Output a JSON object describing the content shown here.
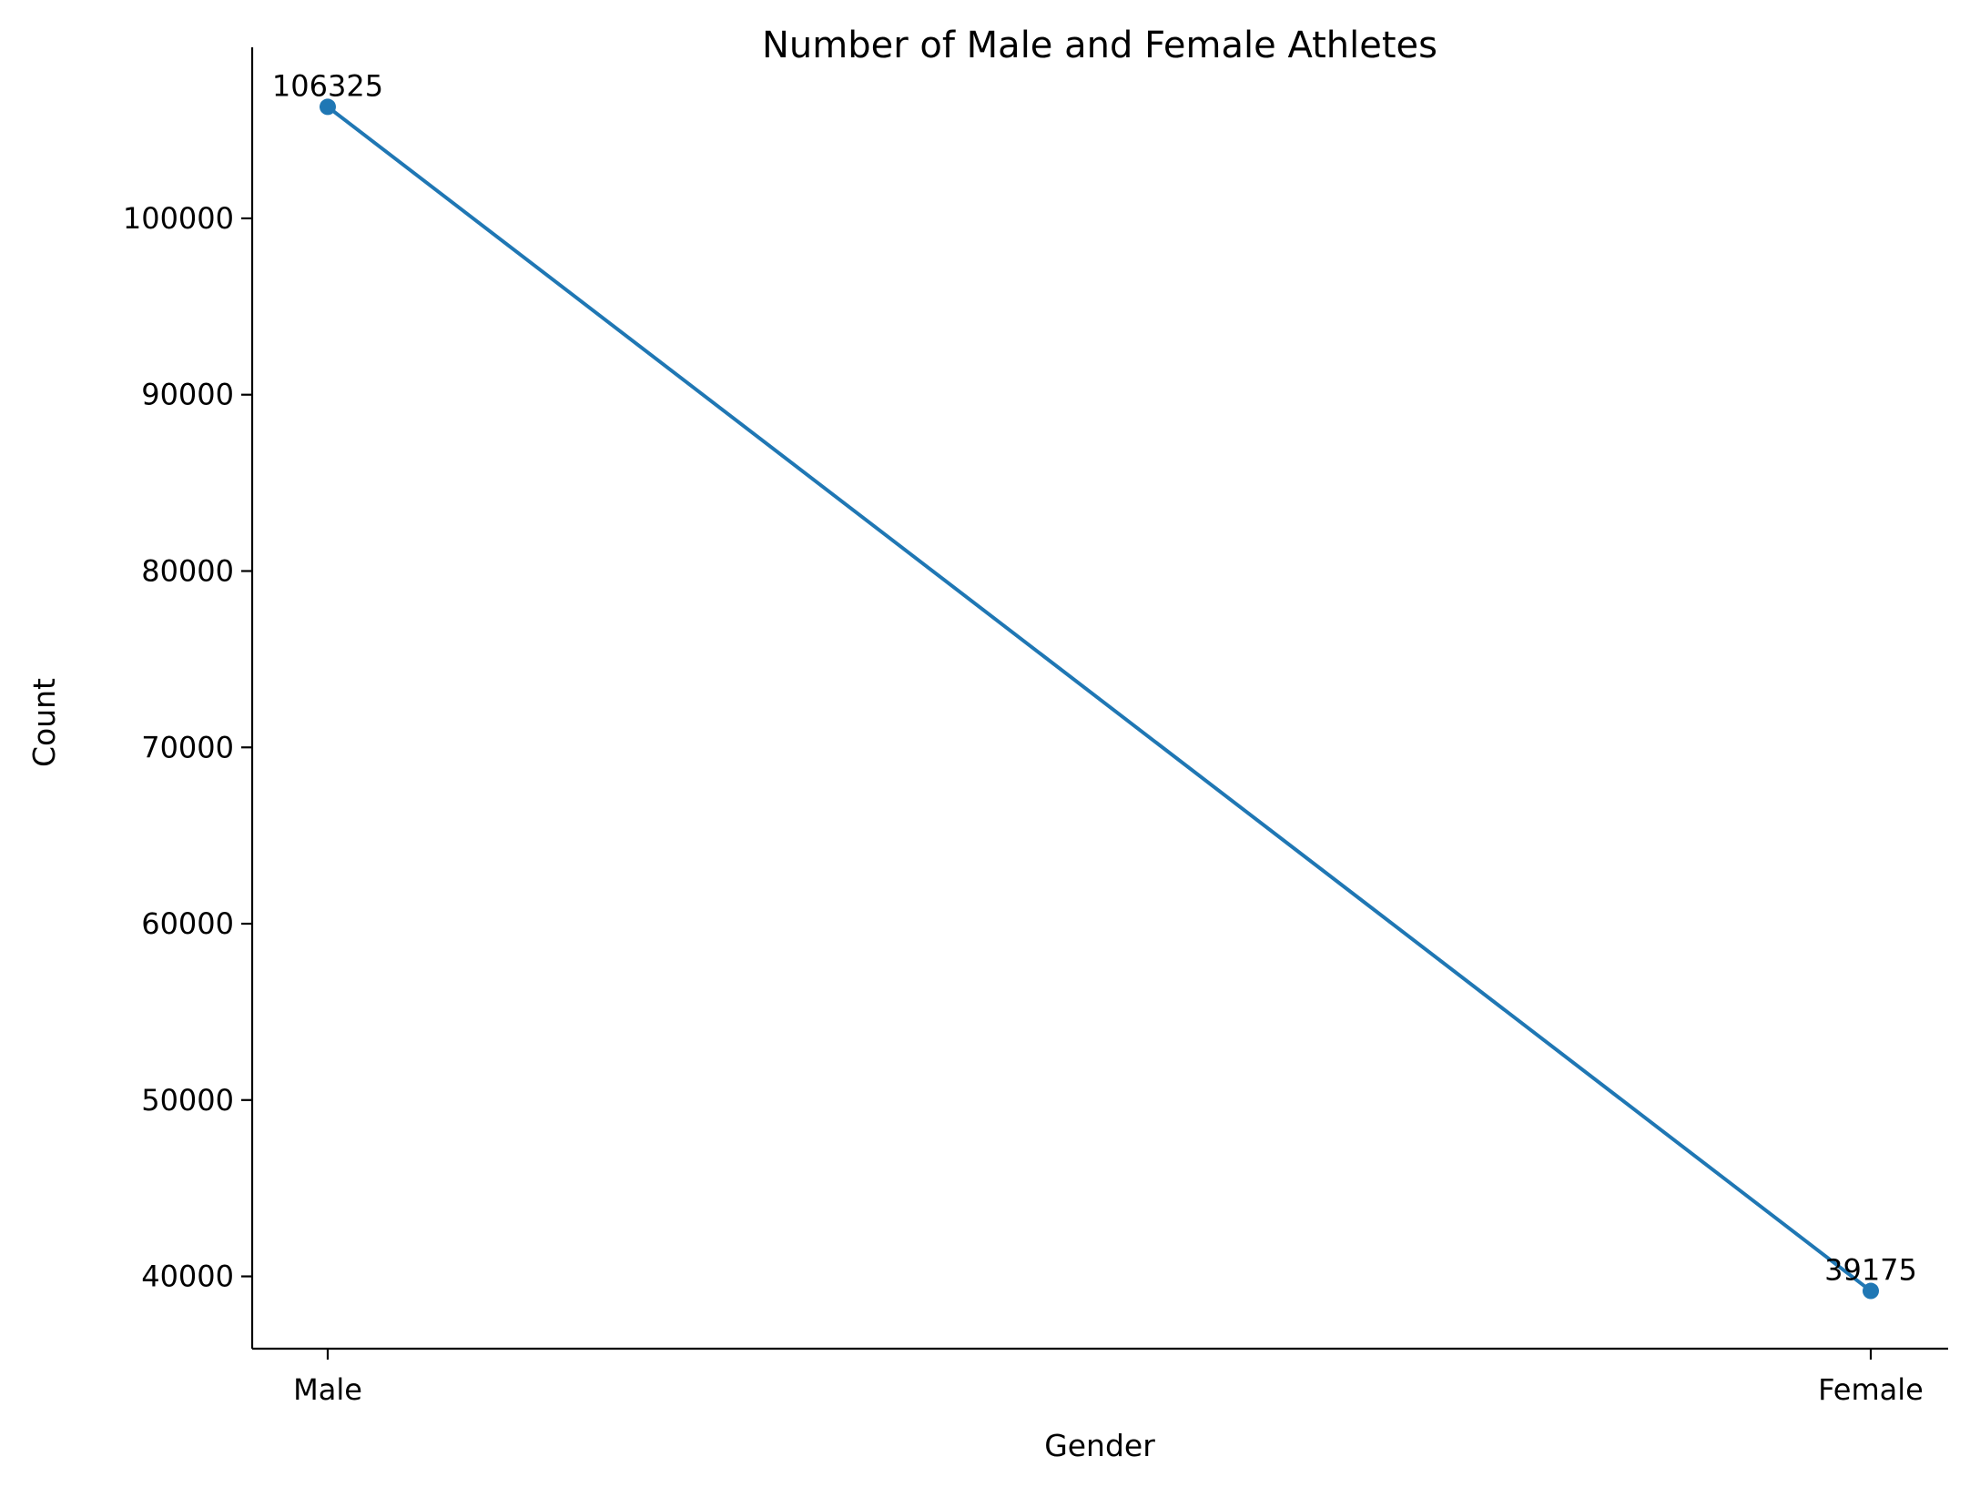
{
  "chart_data": {
    "type": "line",
    "title": "Number of Male and Female Athletes",
    "xlabel": "Gender",
    "ylabel": "Count",
    "categories": [
      "Male",
      "Female"
    ],
    "series": [
      {
        "values": [
          106325,
          39175
        ],
        "color": "#1f77b4",
        "marker": "circle",
        "data_labels": [
          "106325",
          "39175"
        ]
      }
    ],
    "ylim": [
      35900,
      109700
    ],
    "yticks": [
      40000,
      50000,
      60000,
      70000,
      80000,
      90000,
      100000
    ],
    "ytick_labels": [
      "40000",
      "50000",
      "60000",
      "70000",
      "80000",
      "90000",
      "100000"
    ],
    "grid": false,
    "legend": "none",
    "spines": [
      "left",
      "bottom"
    ]
  }
}
